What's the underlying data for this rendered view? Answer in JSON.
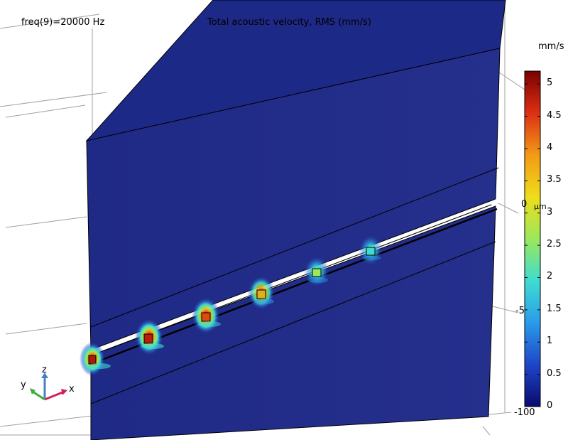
{
  "header": {
    "parameter": "freq(9)=20000 Hz",
    "title": "Total acoustic velocity, RMS (mm/s)"
  },
  "colorbar": {
    "unit": "mm/s",
    "ticks": [
      "5",
      "4.5",
      "4",
      "3.5",
      "3",
      "2.5",
      "2",
      "1.5",
      "1",
      "0.5",
      "0"
    ],
    "min": 0,
    "max": 5.2,
    "colors": [
      "#0a0a6e",
      "#1e46c8",
      "#2a9bea",
      "#3fdcd0",
      "#9ce85a",
      "#eedd1c",
      "#f29a16",
      "#dc3012",
      "#7a0000"
    ]
  },
  "axis_labels": {
    "zero": "0",
    "minus_five": "-5",
    "minus_hundred": "-100",
    "unit": "µm"
  },
  "triad": {
    "x": "x",
    "y": "y",
    "z": "z"
  },
  "colors": {
    "background_field": "#1f2a84",
    "edge": "#000000",
    "grid": "#9a9a9a"
  },
  "hotspots": [
    {
      "index": 1,
      "value": 5.0
    },
    {
      "index": 2,
      "value": 4.9
    },
    {
      "index": 3,
      "value": 4.2
    },
    {
      "index": 4,
      "value": 3.6
    },
    {
      "index": 5,
      "value": 2.9
    },
    {
      "index": 6,
      "value": 2.3
    }
  ]
}
